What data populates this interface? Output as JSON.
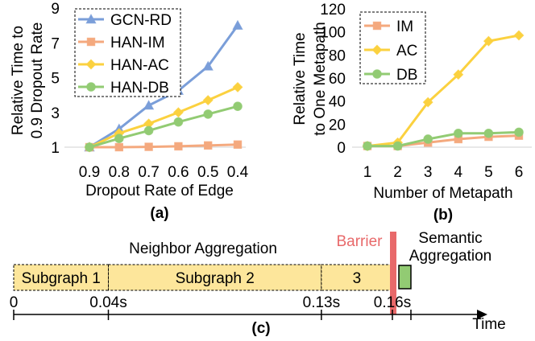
{
  "chart_data": [
    {
      "type": "line",
      "panel_label": "(a)",
      "xlabel": "Dropout Rate of Edge",
      "ylabel_line1": "Relative Time to",
      "ylabel_line2": "0.9 Dropout Rate",
      "categories": [
        "0.9",
        "0.8",
        "0.7",
        "0.6",
        "0.5",
        "0.4"
      ],
      "ylim": [
        1,
        9
      ],
      "yticks": [
        "1",
        "3",
        "5",
        "7",
        "9"
      ],
      "legend_position": "top-left",
      "series": [
        {
          "name": "GCN-RD",
          "color": "#7A9ED9",
          "marker": "triangle",
          "values": [
            1.0,
            2.05,
            3.4,
            4.25,
            5.65,
            8.0
          ]
        },
        {
          "name": "HAN-IM",
          "color": "#F4A97E",
          "marker": "square",
          "values": [
            1.0,
            1.0,
            1.02,
            1.05,
            1.1,
            1.15
          ]
        },
        {
          "name": "HAN-AC",
          "color": "#FBD13F",
          "marker": "diamond",
          "values": [
            1.0,
            1.8,
            2.35,
            3.0,
            3.7,
            4.45
          ]
        },
        {
          "name": "HAN-DB",
          "color": "#92CB73",
          "marker": "circle",
          "values": [
            1.0,
            1.5,
            1.95,
            2.45,
            2.9,
            3.35
          ]
        }
      ]
    },
    {
      "type": "line",
      "panel_label": "(b)",
      "xlabel": "Number of Metapath",
      "ylabel_line1": "Relative Time",
      "ylabel_line2": "to One Metapath",
      "categories": [
        "1",
        "2",
        "3",
        "4",
        "5",
        "6"
      ],
      "ylim": [
        0,
        120
      ],
      "yticks": [
        "0",
        "20",
        "40",
        "60",
        "80",
        "100",
        "120"
      ],
      "legend_position": "top-left",
      "series": [
        {
          "name": "IM",
          "color": "#F4A97E",
          "marker": "square",
          "values": [
            1,
            1,
            4,
            7,
            9,
            10
          ]
        },
        {
          "name": "AC",
          "color": "#FBD13F",
          "marker": "diamond",
          "values": [
            1,
            4,
            39,
            63,
            92,
            97
          ]
        },
        {
          "name": "DB",
          "color": "#92CB73",
          "marker": "circle",
          "values": [
            1,
            1,
            7,
            12,
            12,
            13
          ]
        }
      ]
    },
    {
      "type": "timeline",
      "panel_label": "(c)",
      "axis_label": "Time",
      "x": [
        0,
        0.04,
        0.13,
        0.16
      ],
      "tick_labels": [
        "0",
        "0.04s",
        "0.13s",
        "0.16s"
      ],
      "phase_label": "Neighbor Aggregation",
      "barrier_label": "Barrier",
      "barrier_color": "#E8696A",
      "semantic_label_line1": "Semantic",
      "semantic_label_line2": "Aggregation",
      "semantic_color": "#92CB73",
      "segment_color": "#FDE69B",
      "segments": [
        {
          "label": "Subgraph 1",
          "start": 0,
          "end": 0.04
        },
        {
          "label": "Subgraph 2",
          "start": 0.04,
          "end": 0.13
        },
        {
          "label": "3",
          "start": 0.13,
          "end": 0.16
        }
      ]
    }
  ]
}
